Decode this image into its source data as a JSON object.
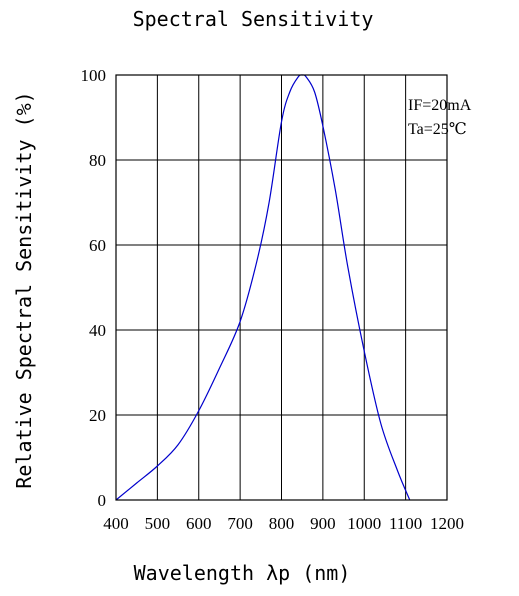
{
  "chart_data": {
    "type": "line",
    "title": "Spectral Sensitivity",
    "xlabel": "Wavelength λp (nm)",
    "ylabel": "Relative Spectral Sensitivity (%)",
    "xlim": [
      400,
      1200
    ],
    "ylim": [
      0,
      100
    ],
    "xticks": [
      400,
      500,
      600,
      700,
      800,
      900,
      1000,
      1100,
      1200
    ],
    "yticks": [
      0,
      20,
      40,
      60,
      80,
      100
    ],
    "grid": true,
    "annotations": [
      "IF=20mA",
      "Ta=25℃"
    ],
    "series": [
      {
        "color": "#0000cc",
        "x": [
          400,
          450,
          500,
          550,
          600,
          650,
          700,
          740,
          770,
          800,
          820,
          840,
          850,
          860,
          880,
          900,
          930,
          960,
          1000,
          1040,
          1080,
          1110
        ],
        "y": [
          0,
          4,
          8,
          13,
          21,
          31,
          42,
          56,
          70,
          89,
          96,
          99.5,
          100,
          99.5,
          96,
          88,
          73,
          55,
          35,
          18,
          7,
          0
        ]
      }
    ]
  }
}
